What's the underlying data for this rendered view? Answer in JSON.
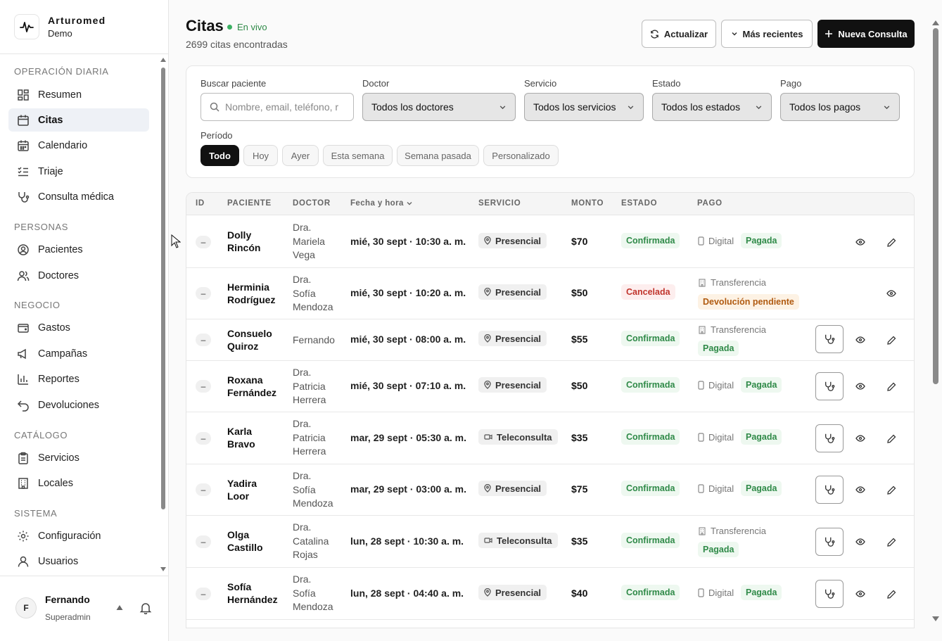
{
  "brand": {
    "name": "Arturomed",
    "sub": "Demo"
  },
  "nav": {
    "sections": [
      {
        "title": "OPERACIÓN DIARIA",
        "items": [
          "Resumen",
          "Citas",
          "Calendario",
          "Triaje",
          "Consulta médica"
        ]
      },
      {
        "title": "PERSONAS",
        "items": [
          "Pacientes",
          "Doctores"
        ]
      },
      {
        "title": "NEGOCIO",
        "items": [
          "Gastos",
          "Campañas",
          "Reportes",
          "Devoluciones"
        ]
      },
      {
        "title": "CATÁLOGO",
        "items": [
          "Servicios",
          "Locales"
        ]
      },
      {
        "title": "SISTEMA",
        "items": [
          "Configuración",
          "Usuarios"
        ]
      }
    ],
    "active": "Citas"
  },
  "user": {
    "initial": "F",
    "name": "Fernando",
    "role": "Superadmin"
  },
  "header": {
    "title": "Citas",
    "live": "En vivo",
    "count": "2699 citas encontradas",
    "refresh": "Actualizar",
    "sort": "Más recientes",
    "new": "Nueva Consulta"
  },
  "filters": {
    "search_label": "Buscar paciente",
    "search_placeholder": "Nombre, email, teléfono, r",
    "doctor_label": "Doctor",
    "doctor_value": "Todos los doctores",
    "service_label": "Servicio",
    "service_value": "Todos los servicios",
    "status_label": "Estado",
    "status_value": "Todos los estados",
    "pay_label": "Pago",
    "pay_value": "Todos los pagos",
    "period_label": "Período",
    "periods": [
      "Todo",
      "Hoy",
      "Ayer",
      "Esta semana",
      "Semana pasada",
      "Personalizado"
    ],
    "period_active": "Todo"
  },
  "table": {
    "columns": [
      "ID",
      "PACIENTE",
      "DOCTOR",
      "Fecha y hora",
      "SERVICIO",
      "MONTO",
      "ESTADO",
      "PAGO"
    ],
    "rows": [
      {
        "id": "–",
        "patient": [
          "Dolly",
          "Rincón"
        ],
        "doctor": [
          "Dra.",
          "Mariela",
          "Vega"
        ],
        "date": "mié, 30 sept · 10:30 a. m.",
        "service": "Presencial",
        "amount": "$70",
        "status": "Confirmada",
        "method": "Digital",
        "payment": "Pagada"
      },
      {
        "id": "–",
        "patient": [
          "Herminia",
          "Rodríguez"
        ],
        "doctor": [
          "Dra.",
          "Sofía",
          "Mendoza"
        ],
        "date": "mié, 30 sept · 10:20 a. m.",
        "service": "Presencial",
        "amount": "$50",
        "status": "Cancelada",
        "method": "Transferencia",
        "payment": "Devolución pendiente"
      },
      {
        "id": "–",
        "patient": [
          "Consuelo",
          "Quiroz"
        ],
        "doctor": [
          "Fernando"
        ],
        "date": "mié, 30 sept · 08:00 a. m.",
        "service": "Presencial",
        "amount": "$55",
        "status": "Confirmada",
        "method": "Transferencia",
        "payment": "Pagada"
      },
      {
        "id": "–",
        "patient": [
          "Roxana",
          "Fernández"
        ],
        "doctor": [
          "Dra.",
          "Patricia",
          "Herrera"
        ],
        "date": "mié, 30 sept · 07:10 a. m.",
        "service": "Presencial",
        "amount": "$50",
        "status": "Confirmada",
        "method": "Digital",
        "payment": "Pagada"
      },
      {
        "id": "–",
        "patient": [
          "Karla",
          "Bravo"
        ],
        "doctor": [
          "Dra.",
          "Patricia",
          "Herrera"
        ],
        "date": "mar, 29 sept · 05:30 a. m.",
        "service": "Teleconsulta",
        "amount": "$35",
        "status": "Confirmada",
        "method": "Digital",
        "payment": "Pagada"
      },
      {
        "id": "–",
        "patient": [
          "Yadira",
          "Loor"
        ],
        "doctor": [
          "Dra.",
          "Sofía",
          "Mendoza"
        ],
        "date": "mar, 29 sept · 03:00 a. m.",
        "service": "Presencial",
        "amount": "$75",
        "status": "Confirmada",
        "method": "Digital",
        "payment": "Pagada"
      },
      {
        "id": "–",
        "patient": [
          "Olga",
          "Castillo"
        ],
        "doctor": [
          "Dra.",
          "Catalina",
          "Rojas"
        ],
        "date": "lun, 28 sept · 10:30 a. m.",
        "service": "Teleconsulta",
        "amount": "$35",
        "status": "Confirmada",
        "method": "Transferencia",
        "payment": "Pagada"
      },
      {
        "id": "–",
        "patient": [
          "Sofía",
          "Hernández"
        ],
        "doctor": [
          "Dra.",
          "Sofía",
          "Mendoza"
        ],
        "date": "lun, 28 sept · 04:40 a. m.",
        "service": "Presencial",
        "amount": "$40",
        "status": "Confirmada",
        "method": "Digital",
        "payment": "Pagada"
      }
    ]
  }
}
